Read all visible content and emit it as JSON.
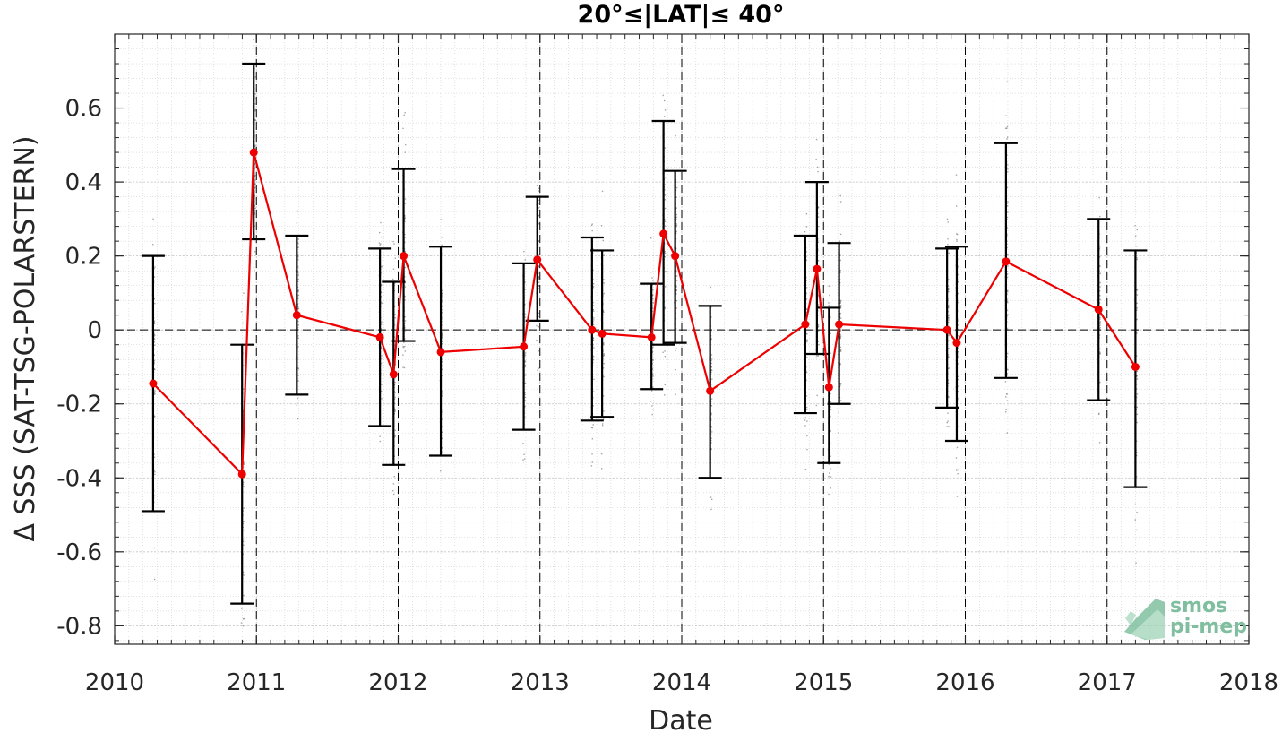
{
  "chart_data": {
    "type": "line",
    "title": "20°≤|LAT|≤ 40°",
    "xlabel": "Date",
    "ylabel": "Δ SSS (SAT-TSG-POLARSTERN)",
    "xlim": [
      "2010-01-01",
      "2018-01-01"
    ],
    "ylim": [
      -0.85,
      0.8
    ],
    "x_ticks": [
      "2010",
      "2011",
      "2012",
      "2013",
      "2014",
      "2015",
      "2016",
      "2017",
      "2018"
    ],
    "y_ticks": [
      -0.8,
      -0.6,
      -0.4,
      -0.2,
      0,
      0.2,
      0.4,
      0.6
    ],
    "y_tick_labels": [
      "-0.8",
      "-0.6",
      "-0.4",
      "-0.2",
      "0",
      "0.2",
      "0.4",
      "0.6"
    ],
    "grid": true,
    "reference_line_y": 0,
    "year_boundary_lines": [
      "2011-01-01",
      "2012-01-01",
      "2013-01-01",
      "2014-01-01",
      "2015-01-01",
      "2016-01-01",
      "2017-01-01"
    ],
    "colors": {
      "mean_line": "#ee0000",
      "error_bars": "#000000",
      "scatter": "#7f7f7f",
      "grid": "#d0d0d0",
      "logo": "#7fbf9f"
    },
    "series": [
      {
        "x": [
          "2010-04-10",
          "2010-11-25",
          "2010-12-25",
          "2011-04-15",
          "2011-11-15",
          "2011-12-20",
          "2012-01-15",
          "2012-04-20",
          "2012-11-20",
          "2012-12-25",
          "2013-05-15",
          "2013-06-10",
          "2013-10-15",
          "2013-11-15",
          "2013-12-15",
          "2014-03-15",
          "2014-11-15",
          "2014-12-15",
          "2015-01-15",
          "2015-02-10",
          "2015-11-15",
          "2015-12-10",
          "2016-04-15",
          "2016-12-10",
          "2017-03-15"
        ],
        "y": [
          -0.145,
          -0.39,
          0.48,
          0.04,
          -0.02,
          -0.12,
          0.2,
          -0.06,
          -0.045,
          0.19,
          0.0,
          -0.01,
          -0.02,
          0.26,
          0.2,
          -0.165,
          0.015,
          0.165,
          -0.155,
          0.015,
          0.0,
          -0.035,
          0.185,
          0.055,
          -0.1
        ],
        "err_low": [
          -0.49,
          -0.74,
          0.245,
          -0.175,
          -0.26,
          -0.365,
          -0.03,
          -0.34,
          -0.27,
          0.025,
          -0.245,
          -0.235,
          -0.16,
          -0.04,
          -0.035,
          -0.4,
          -0.225,
          -0.065,
          -0.36,
          -0.2,
          -0.21,
          -0.3,
          -0.13,
          -0.19,
          -0.425
        ],
        "err_high": [
          0.2,
          -0.04,
          0.72,
          0.255,
          0.22,
          0.13,
          0.435,
          0.225,
          0.18,
          0.36,
          0.25,
          0.215,
          0.125,
          0.565,
          0.43,
          0.065,
          0.255,
          0.4,
          0.06,
          0.235,
          0.22,
          0.225,
          0.505,
          0.3,
          0.215
        ]
      }
    ],
    "logo": {
      "line1": "smos",
      "line2": "pi-mep"
    }
  }
}
